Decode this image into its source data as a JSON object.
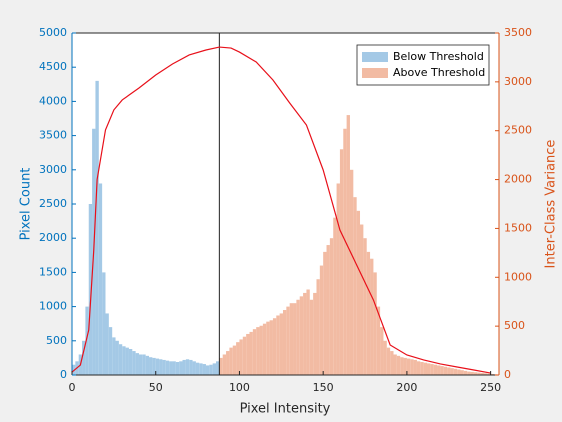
{
  "chart_data": {
    "type": "histogram",
    "xlabel": "Pixel Intensity",
    "ylabel": "Pixel Count",
    "y2label": "Inter-Class Variance",
    "xlim": [
      0,
      255
    ],
    "xticks": [
      0,
      50,
      100,
      150,
      200,
      250
    ],
    "ylim": [
      0,
      5000
    ],
    "yticks": [
      0,
      500,
      1000,
      1500,
      2000,
      2500,
      3000,
      3500,
      4000,
      4500,
      5000
    ],
    "y2lim": [
      0,
      3500
    ],
    "y2ticks": [
      0,
      500,
      1000,
      1500,
      2000,
      2500,
      3000,
      3500
    ],
    "ycolor": "#0072bd",
    "y2color": "#d95319",
    "legend": "top-right",
    "threshold": 88,
    "series": [
      {
        "name": "Below Threshold",
        "color": "#a4c9e6",
        "bins": [
          0,
          2,
          4,
          6,
          8,
          10,
          12,
          14,
          16,
          18,
          20,
          22,
          24,
          26,
          28,
          30,
          32,
          34,
          36,
          38,
          40,
          42,
          44,
          46,
          48,
          50,
          52,
          54,
          56,
          58,
          60,
          62,
          64,
          66,
          68,
          70,
          72,
          74,
          76,
          78,
          80,
          82,
          84,
          86,
          88
        ],
        "counts": [
          150,
          200,
          300,
          500,
          1000,
          2500,
          3600,
          4300,
          2800,
          1500,
          900,
          700,
          550,
          500,
          450,
          420,
          400,
          380,
          350,
          320,
          300,
          300,
          280,
          260,
          250,
          240,
          230,
          220,
          210,
          200,
          200,
          190,
          200,
          220,
          230,
          220,
          200,
          180,
          170,
          160,
          140,
          150,
          170,
          200
        ]
      },
      {
        "name": "Above Threshold",
        "color": "#f2bba3",
        "bins": [
          88,
          90,
          92,
          94,
          96,
          98,
          100,
          102,
          104,
          106,
          108,
          110,
          112,
          114,
          116,
          118,
          120,
          122,
          124,
          126,
          128,
          130,
          132,
          134,
          136,
          138,
          140,
          142,
          144,
          146,
          148,
          150,
          152,
          154,
          156,
          158,
          160,
          162,
          164,
          166,
          168,
          170,
          172,
          174,
          176,
          178,
          180,
          182,
          184,
          186,
          188,
          190,
          192,
          194,
          196,
          198,
          200,
          202,
          204,
          206,
          208,
          210,
          212,
          214,
          216,
          218,
          220,
          222,
          224,
          226,
          228,
          230,
          232,
          234,
          236,
          238,
          240,
          242,
          244,
          246,
          248,
          250,
          252,
          254
        ],
        "counts": [
          250,
          300,
          350,
          400,
          430,
          480,
          520,
          560,
          600,
          630,
          670,
          700,
          720,
          750,
          780,
          800,
          830,
          870,
          900,
          950,
          1000,
          1050,
          1050,
          1100,
          1150,
          1200,
          1250,
          1100,
          1200,
          1400,
          1600,
          1800,
          1900,
          2000,
          2300,
          2800,
          3300,
          3600,
          3800,
          3000,
          2600,
          2400,
          2200,
          2000,
          1800,
          1700,
          1500,
          1000,
          700,
          500,
          400,
          350,
          300,
          280,
          260,
          250,
          240,
          230,
          220,
          200,
          190,
          180,
          170,
          160,
          150,
          140,
          130,
          120,
          110,
          100,
          90,
          80,
          70,
          60,
          50,
          45,
          40,
          35,
          30,
          25,
          20,
          15,
          10
        ]
      }
    ],
    "curve": {
      "color": "#e8101a",
      "axis": "y2",
      "x": [
        0,
        5,
        10,
        13,
        15,
        20,
        25,
        30,
        40,
        50,
        60,
        70,
        80,
        88,
        95,
        100,
        110,
        120,
        130,
        140,
        150,
        160,
        170,
        180,
        190,
        200,
        210,
        220,
        230,
        240,
        250
      ],
      "values": [
        30,
        102,
        460,
        1280,
        2000,
        2508,
        2713,
        2815,
        2937,
        3070,
        3183,
        3275,
        3326,
        3356,
        3346,
        3305,
        3203,
        3019,
        2784,
        2558,
        2098,
        1484,
        1126,
        768,
        307,
        205,
        154,
        113,
        82,
        51,
        20
      ]
    }
  }
}
